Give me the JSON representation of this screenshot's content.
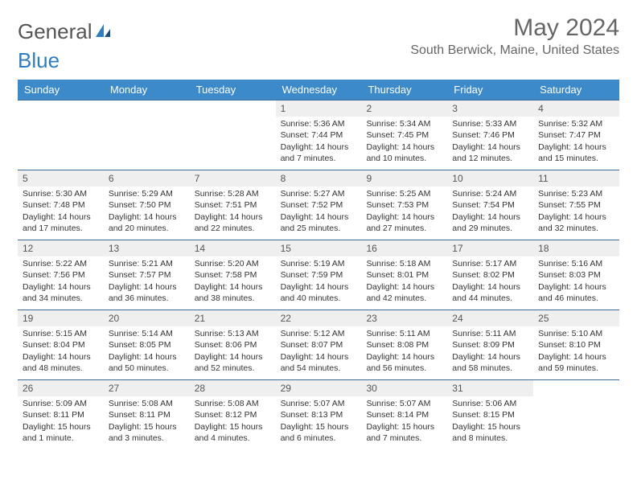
{
  "brand": {
    "part1": "General",
    "part2": "Blue"
  },
  "title": "May 2024",
  "location": "South Berwick, Maine, United States",
  "header_bg": "#3c8ac9",
  "header_text_color": "#ffffff",
  "row_border_color": "#3c6a94",
  "daynum_bg": "#efefef",
  "weekdays": [
    "Sunday",
    "Monday",
    "Tuesday",
    "Wednesday",
    "Thursday",
    "Friday",
    "Saturday"
  ],
  "weeks": [
    [
      null,
      null,
      null,
      {
        "n": "1",
        "sr": "Sunrise: 5:36 AM",
        "ss": "Sunset: 7:44 PM",
        "dl": "Daylight: 14 hours and 7 minutes."
      },
      {
        "n": "2",
        "sr": "Sunrise: 5:34 AM",
        "ss": "Sunset: 7:45 PM",
        "dl": "Daylight: 14 hours and 10 minutes."
      },
      {
        "n": "3",
        "sr": "Sunrise: 5:33 AM",
        "ss": "Sunset: 7:46 PM",
        "dl": "Daylight: 14 hours and 12 minutes."
      },
      {
        "n": "4",
        "sr": "Sunrise: 5:32 AM",
        "ss": "Sunset: 7:47 PM",
        "dl": "Daylight: 14 hours and 15 minutes."
      }
    ],
    [
      {
        "n": "5",
        "sr": "Sunrise: 5:30 AM",
        "ss": "Sunset: 7:48 PM",
        "dl": "Daylight: 14 hours and 17 minutes."
      },
      {
        "n": "6",
        "sr": "Sunrise: 5:29 AM",
        "ss": "Sunset: 7:50 PM",
        "dl": "Daylight: 14 hours and 20 minutes."
      },
      {
        "n": "7",
        "sr": "Sunrise: 5:28 AM",
        "ss": "Sunset: 7:51 PM",
        "dl": "Daylight: 14 hours and 22 minutes."
      },
      {
        "n": "8",
        "sr": "Sunrise: 5:27 AM",
        "ss": "Sunset: 7:52 PM",
        "dl": "Daylight: 14 hours and 25 minutes."
      },
      {
        "n": "9",
        "sr": "Sunrise: 5:25 AM",
        "ss": "Sunset: 7:53 PM",
        "dl": "Daylight: 14 hours and 27 minutes."
      },
      {
        "n": "10",
        "sr": "Sunrise: 5:24 AM",
        "ss": "Sunset: 7:54 PM",
        "dl": "Daylight: 14 hours and 29 minutes."
      },
      {
        "n": "11",
        "sr": "Sunrise: 5:23 AM",
        "ss": "Sunset: 7:55 PM",
        "dl": "Daylight: 14 hours and 32 minutes."
      }
    ],
    [
      {
        "n": "12",
        "sr": "Sunrise: 5:22 AM",
        "ss": "Sunset: 7:56 PM",
        "dl": "Daylight: 14 hours and 34 minutes."
      },
      {
        "n": "13",
        "sr": "Sunrise: 5:21 AM",
        "ss": "Sunset: 7:57 PM",
        "dl": "Daylight: 14 hours and 36 minutes."
      },
      {
        "n": "14",
        "sr": "Sunrise: 5:20 AM",
        "ss": "Sunset: 7:58 PM",
        "dl": "Daylight: 14 hours and 38 minutes."
      },
      {
        "n": "15",
        "sr": "Sunrise: 5:19 AM",
        "ss": "Sunset: 7:59 PM",
        "dl": "Daylight: 14 hours and 40 minutes."
      },
      {
        "n": "16",
        "sr": "Sunrise: 5:18 AM",
        "ss": "Sunset: 8:01 PM",
        "dl": "Daylight: 14 hours and 42 minutes."
      },
      {
        "n": "17",
        "sr": "Sunrise: 5:17 AM",
        "ss": "Sunset: 8:02 PM",
        "dl": "Daylight: 14 hours and 44 minutes."
      },
      {
        "n": "18",
        "sr": "Sunrise: 5:16 AM",
        "ss": "Sunset: 8:03 PM",
        "dl": "Daylight: 14 hours and 46 minutes."
      }
    ],
    [
      {
        "n": "19",
        "sr": "Sunrise: 5:15 AM",
        "ss": "Sunset: 8:04 PM",
        "dl": "Daylight: 14 hours and 48 minutes."
      },
      {
        "n": "20",
        "sr": "Sunrise: 5:14 AM",
        "ss": "Sunset: 8:05 PM",
        "dl": "Daylight: 14 hours and 50 minutes."
      },
      {
        "n": "21",
        "sr": "Sunrise: 5:13 AM",
        "ss": "Sunset: 8:06 PM",
        "dl": "Daylight: 14 hours and 52 minutes."
      },
      {
        "n": "22",
        "sr": "Sunrise: 5:12 AM",
        "ss": "Sunset: 8:07 PM",
        "dl": "Daylight: 14 hours and 54 minutes."
      },
      {
        "n": "23",
        "sr": "Sunrise: 5:11 AM",
        "ss": "Sunset: 8:08 PM",
        "dl": "Daylight: 14 hours and 56 minutes."
      },
      {
        "n": "24",
        "sr": "Sunrise: 5:11 AM",
        "ss": "Sunset: 8:09 PM",
        "dl": "Daylight: 14 hours and 58 minutes."
      },
      {
        "n": "25",
        "sr": "Sunrise: 5:10 AM",
        "ss": "Sunset: 8:10 PM",
        "dl": "Daylight: 14 hours and 59 minutes."
      }
    ],
    [
      {
        "n": "26",
        "sr": "Sunrise: 5:09 AM",
        "ss": "Sunset: 8:11 PM",
        "dl": "Daylight: 15 hours and 1 minute."
      },
      {
        "n": "27",
        "sr": "Sunrise: 5:08 AM",
        "ss": "Sunset: 8:11 PM",
        "dl": "Daylight: 15 hours and 3 minutes."
      },
      {
        "n": "28",
        "sr": "Sunrise: 5:08 AM",
        "ss": "Sunset: 8:12 PM",
        "dl": "Daylight: 15 hours and 4 minutes."
      },
      {
        "n": "29",
        "sr": "Sunrise: 5:07 AM",
        "ss": "Sunset: 8:13 PM",
        "dl": "Daylight: 15 hours and 6 minutes."
      },
      {
        "n": "30",
        "sr": "Sunrise: 5:07 AM",
        "ss": "Sunset: 8:14 PM",
        "dl": "Daylight: 15 hours and 7 minutes."
      },
      {
        "n": "31",
        "sr": "Sunrise: 5:06 AM",
        "ss": "Sunset: 8:15 PM",
        "dl": "Daylight: 15 hours and 8 minutes."
      },
      null
    ]
  ]
}
